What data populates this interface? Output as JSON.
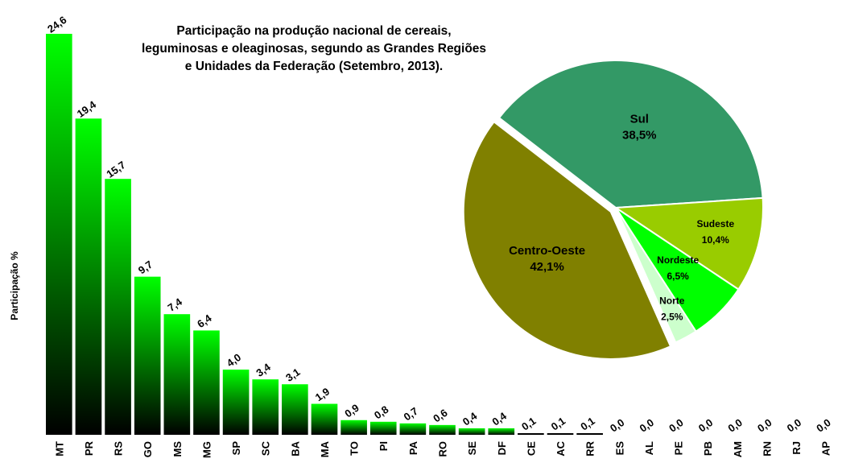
{
  "chart_data": [
    {
      "type": "bar",
      "title": "Participação na produção nacional de cereais, leguminosas e oleaginosas, segundo as Grandes Regiões e Unidades da Federação  (Setembro, 2013).",
      "ylabel": "Participação %",
      "categories": [
        "MT",
        "PR",
        "RS",
        "GO",
        "MS",
        "MG",
        "SP",
        "SC",
        "BA",
        "MA",
        "TO",
        "PI",
        "PA",
        "RO",
        "SE",
        "DF",
        "CE",
        "AC",
        "RR",
        "ES",
        "AL",
        "PE",
        "PB",
        "AM",
        "RN",
        "RJ",
        "AP"
      ],
      "values": [
        24.6,
        19.4,
        15.7,
        9.7,
        7.4,
        6.4,
        4.0,
        3.4,
        3.1,
        1.9,
        0.9,
        0.8,
        0.7,
        0.6,
        0.4,
        0.4,
        0.1,
        0.1,
        0.1,
        0.0,
        0.0,
        0.0,
        0.0,
        0.0,
        0.0,
        0.0,
        0.0
      ],
      "value_labels": [
        "24,6",
        "19,4",
        "15,7",
        "9,7",
        "7,4",
        "6,4",
        "4,0",
        "3,4",
        "3,1",
        "1,9",
        "0,9",
        "0,8",
        "0,7",
        "0,6",
        "0,4",
        "0,4",
        "0,1",
        "0,1",
        "0,1",
        "0,0",
        "0,0",
        "0,0",
        "0,0",
        "0,0",
        "0,0",
        "0,0",
        "0,0"
      ],
      "color": "#00ff00"
    },
    {
      "type": "pie",
      "categories": [
        "Sul",
        "Sudeste",
        "Nordeste",
        "Norte",
        "Centro-Oeste"
      ],
      "values": [
        38.5,
        10.4,
        6.5,
        2.5,
        42.1
      ],
      "value_labels": [
        "38,5%",
        "10,4%",
        "6,5%",
        "2,5%",
        "42,1%"
      ],
      "colors": [
        "#339966",
        "#99cc00",
        "#00ff00",
        "#ccffcc",
        "#808000"
      ]
    }
  ]
}
